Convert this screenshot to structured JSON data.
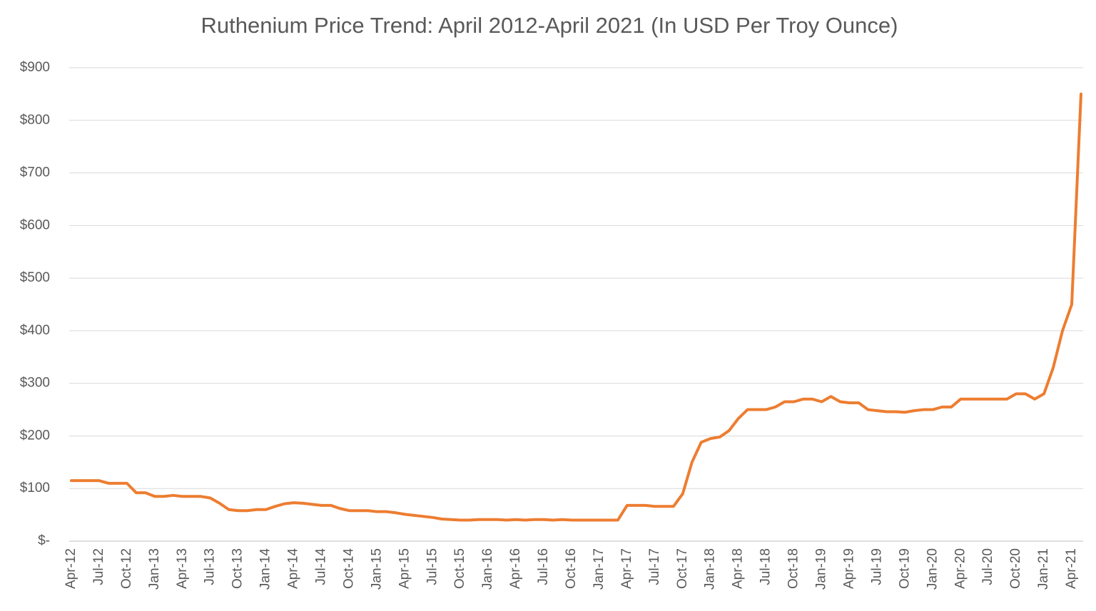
{
  "chart_data": {
    "type": "line",
    "title": "Ruthenium Price Trend: April 2012-April 2021 (In USD Per Troy Ounce)",
    "categories": [
      "Apr-12",
      null,
      null,
      "Jul-12",
      null,
      null,
      "Oct-12",
      null,
      null,
      "Jan-13",
      null,
      null,
      "Apr-13",
      null,
      null,
      "Jul-13",
      null,
      null,
      "Oct-13",
      null,
      null,
      "Jan-14",
      null,
      null,
      "Apr-14",
      null,
      null,
      "Jul-14",
      null,
      null,
      "Oct-14",
      null,
      null,
      "Jan-15",
      null,
      null,
      "Apr-15",
      null,
      null,
      "Jul-15",
      null,
      null,
      "Oct-15",
      null,
      null,
      "Jan-16",
      null,
      null,
      "Apr-16",
      null,
      null,
      "Jul-16",
      null,
      null,
      "Oct-16",
      null,
      null,
      "Jan-17",
      null,
      null,
      "Apr-17",
      null,
      null,
      "Jul-17",
      null,
      null,
      "Oct-17",
      null,
      null,
      "Jan-18",
      null,
      null,
      "Apr-18",
      null,
      null,
      "Jul-18",
      null,
      null,
      "Oct-18",
      null,
      null,
      "Jan-19",
      null,
      null,
      "Apr-19",
      null,
      null,
      "Jul-19",
      null,
      null,
      "Oct-19",
      null,
      null,
      "Jan-20",
      null,
      null,
      "Apr-20",
      null,
      null,
      "Jul-20",
      null,
      null,
      "Oct-20",
      null,
      null,
      "Jan-21",
      null,
      null,
      "Apr-21",
      null
    ],
    "series": [
      {
        "name": "Ruthenium",
        "color": "#ed7d31",
        "values": [
          115,
          115,
          115,
          115,
          110,
          110,
          110,
          92,
          92,
          85,
          85,
          87,
          85,
          85,
          85,
          82,
          72,
          60,
          58,
          58,
          60,
          60,
          66,
          71,
          73,
          72,
          70,
          68,
          68,
          62,
          58,
          58,
          58,
          56,
          56,
          54,
          51,
          49,
          47,
          45,
          42,
          41,
          40,
          40,
          41,
          41,
          41,
          40,
          41,
          40,
          41,
          41,
          40,
          41,
          40,
          40,
          40,
          40,
          40,
          40,
          68,
          68,
          68,
          66,
          66,
          66,
          90,
          150,
          188,
          195,
          198,
          210,
          233,
          250,
          250,
          250,
          255,
          265,
          265,
          270,
          270,
          265,
          275,
          265,
          263,
          263,
          250,
          248,
          246,
          246,
          245,
          248,
          250,
          250,
          255,
          255,
          270,
          270,
          270,
          270,
          270,
          270,
          280,
          280,
          270,
          280,
          330,
          400,
          450,
          850
        ]
      }
    ],
    "ylim": [
      0,
      900
    ],
    "yticks": [
      {
        "value": 0,
        "label": "$-"
      },
      {
        "value": 100,
        "label": "$100"
      },
      {
        "value": 200,
        "label": "$200"
      },
      {
        "value": 300,
        "label": "$300"
      },
      {
        "value": 400,
        "label": "$400"
      },
      {
        "value": 500,
        "label": "$500"
      },
      {
        "value": 600,
        "label": "$600"
      },
      {
        "value": 700,
        "label": "$700"
      },
      {
        "value": 800,
        "label": "$800"
      },
      {
        "value": 900,
        "label": "$900"
      }
    ],
    "grid": true
  }
}
